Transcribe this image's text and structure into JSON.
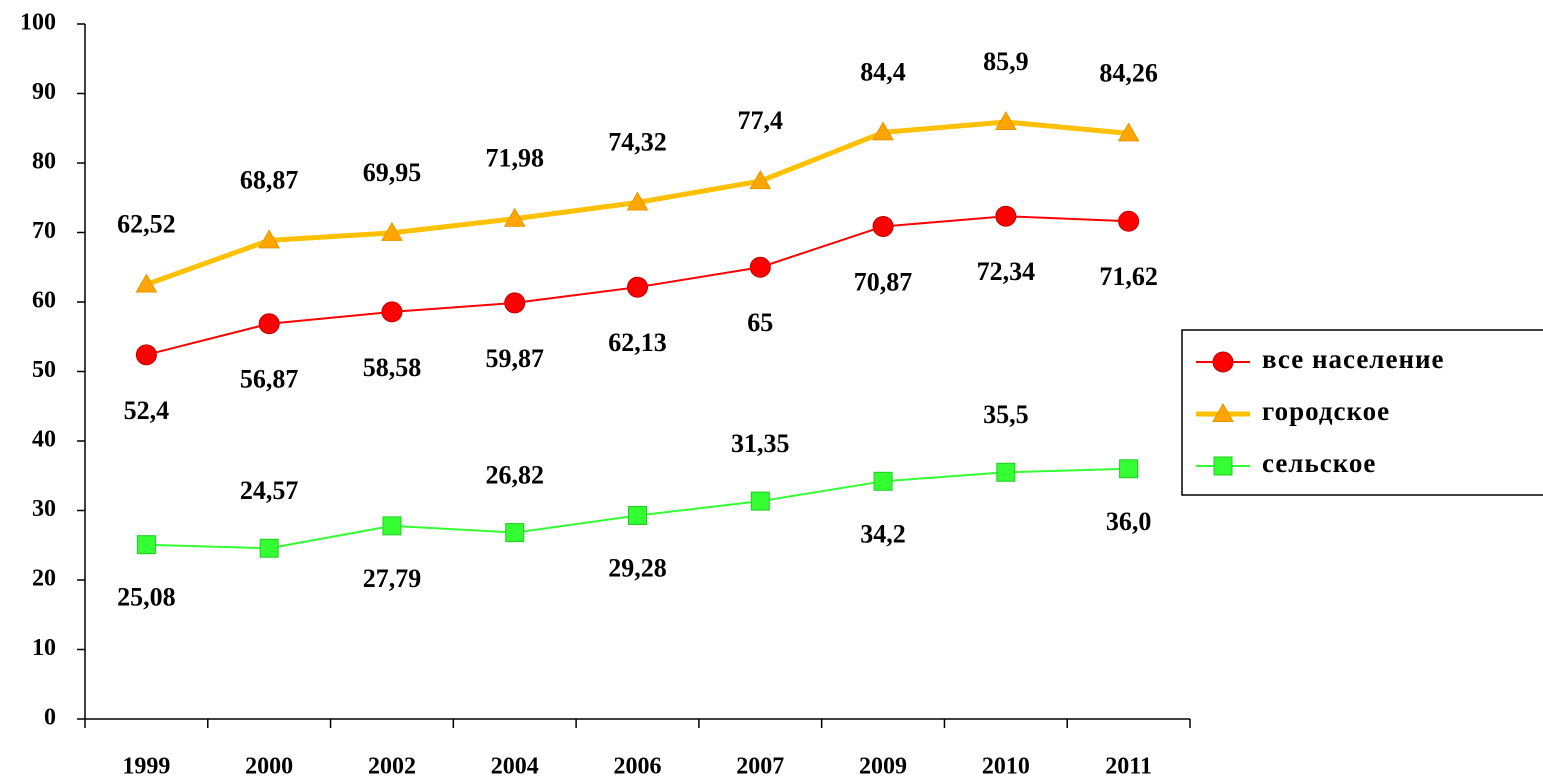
{
  "chart_data": {
    "type": "line",
    "categories": [
      "1999",
      "2000",
      "2002",
      "2004",
      "2006",
      "2007",
      "2009",
      "2010",
      "2011"
    ],
    "series": [
      {
        "name": "все население",
        "color": "#ff0000",
        "marker": "circle",
        "values": [
          52.4,
          56.87,
          58.58,
          59.87,
          62.13,
          65,
          70.87,
          72.34,
          71.62
        ],
        "value_labels": [
          "52,4",
          "56,87",
          "58,58",
          "59,87",
          "62,13",
          "65",
          "70,87",
          "72,34",
          "71,62"
        ]
      },
      {
        "name": "городское",
        "color": "#ffc000",
        "marker": "triangle",
        "values": [
          62.52,
          68.87,
          69.95,
          71.98,
          74.32,
          77.4,
          84.4,
          85.9,
          84.26
        ],
        "value_labels": [
          "62,52",
          "68,87",
          "69,95",
          "71,98",
          "74,32",
          "77,4",
          "84,4",
          "85,9",
          "84,26"
        ]
      },
      {
        "name": "сельское",
        "color": "#33ff33",
        "marker": "square",
        "values": [
          25.08,
          24.57,
          27.79,
          26.82,
          29.28,
          31.35,
          34.2,
          35.5,
          36.0
        ],
        "value_labels": [
          "25,08",
          "24,57",
          "27,79",
          "26,82",
          "29,28",
          "31,35",
          "34,2",
          "35,5",
          "36,0"
        ]
      }
    ],
    "ylim": [
      0,
      100
    ],
    "yticks": [
      0,
      10,
      20,
      30,
      40,
      50,
      60,
      70,
      80,
      90,
      100
    ],
    "grid": false,
    "legend": "right"
  }
}
